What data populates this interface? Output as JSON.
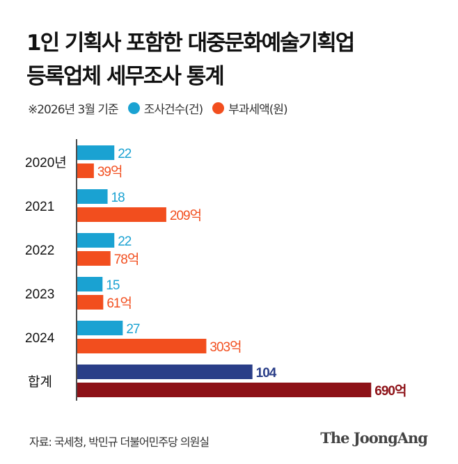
{
  "title_line1": "1인 기획사 포함한 대중문화예술기획업",
  "title_line2": "등록업체 세무조사 통계",
  "legend": {
    "note": "※2026년 3월 기준",
    "count_label": "조사건수(건)",
    "amount_label": "부과세액(원)"
  },
  "colors": {
    "count": "#1aa2d2",
    "amount": "#f24e1e",
    "total_count": "#2a3e88",
    "total_amount": "#8d1117"
  },
  "chart_data": {
    "type": "bar",
    "orientation": "horizontal",
    "categories": [
      "2020년",
      "2021",
      "2022",
      "2023",
      "2024",
      "합계"
    ],
    "series": [
      {
        "name": "조사건수(건)",
        "values": [
          22,
          18,
          22,
          15,
          27,
          104
        ],
        "labels": [
          "22",
          "18",
          "22",
          "15",
          "27",
          "104"
        ]
      },
      {
        "name": "부과세액(원)",
        "values": [
          39,
          209,
          78,
          61,
          303,
          690
        ],
        "labels": [
          "39억",
          "209억",
          "78억",
          "61억",
          "303억",
          "690억"
        ]
      }
    ]
  },
  "footer": {
    "source": "자료: 국세청, 박민규 더불어민주당 의원실",
    "logo": "The JoongAng"
  }
}
